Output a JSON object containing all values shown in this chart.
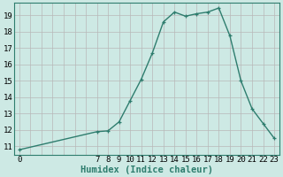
{
  "xlabel": "Humidex (Indice chaleur)",
  "ylabel": "",
  "x": [
    0,
    7,
    8,
    9,
    10,
    11,
    12,
    13,
    14,
    15,
    16,
    17,
    18,
    19,
    20,
    21,
    22,
    23
  ],
  "y": [
    10.8,
    11.9,
    11.95,
    12.5,
    13.8,
    15.1,
    16.7,
    18.6,
    19.2,
    18.95,
    19.1,
    19.2,
    19.45,
    17.75,
    15.0,
    13.3,
    12.4,
    11.5
  ],
  "line_color": "#2e7d6e",
  "bg_color": "#cde9e4",
  "grid_major_color": "#b8b8b8",
  "grid_minor_color": "#d0d0d0",
  "ylim": [
    10.5,
    19.75
  ],
  "yticks": [
    11,
    12,
    13,
    14,
    15,
    16,
    17,
    18,
    19
  ],
  "xlim": [
    -0.5,
    23.5
  ],
  "xtick_shown_positions": [
    0,
    7,
    8,
    9,
    10,
    11,
    12,
    13,
    14,
    15,
    16,
    17,
    18,
    19,
    20,
    21,
    22,
    23
  ],
  "xtick_shown_labels": [
    "0",
    "7",
    "8",
    "9",
    "10",
    "11",
    "12",
    "13",
    "14",
    "15",
    "16",
    "17",
    "18",
    "19",
    "20",
    "21",
    "22",
    "23"
  ],
  "marker_size": 3,
  "line_width": 1.0,
  "tick_font_size": 6.5,
  "xlabel_font_size": 7.5
}
